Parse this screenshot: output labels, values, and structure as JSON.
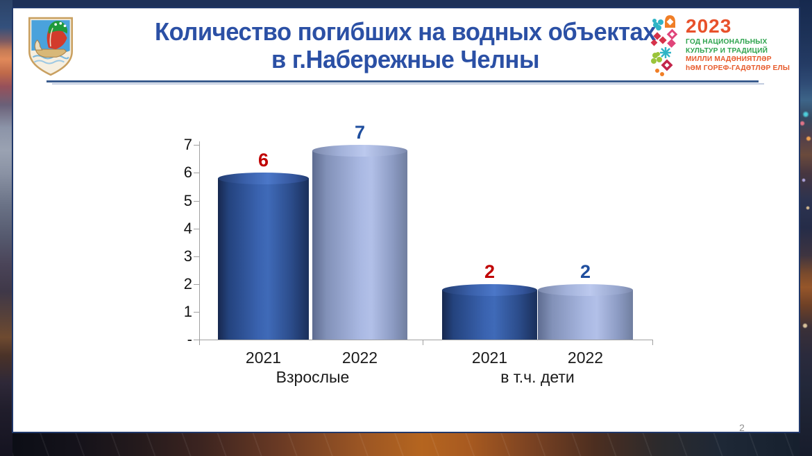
{
  "slide": {
    "title_line1": "Количество погибших на водных объектах",
    "title_line2": "в г.Набережные Челны",
    "title_color": "#2b50a5",
    "page_number": "2"
  },
  "emblem": {
    "name": "герб г.Набережные Челны",
    "colors": {
      "field_blue": "#4aa2dc",
      "sail_red": "#d23b2c",
      "sail_green": "#1f9a3c",
      "boat_gold": "#d8b878"
    }
  },
  "logo2023": {
    "year": "2023",
    "year_color": "#e8512b",
    "lines": [
      {
        "text": "ГОД НАЦИОНАЛЬНЫХ",
        "color": "#2fa44f"
      },
      {
        "text": "КУЛЬТУР И ТРАДИЦИЙ",
        "color": "#2fa44f"
      },
      {
        "text": "МИЛЛИ МАДӘНИЯТЛӘР",
        "color": "#e75a2b"
      },
      {
        "text": "һӘМ ГОРЕФ-ГАДӘТЛӘР ЕЛЫ",
        "color": "#e75a2b"
      }
    ]
  },
  "chart_data": {
    "type": "bar",
    "style": "3d-cylinder",
    "title": "",
    "xlabel": "",
    "ylabel": "",
    "ylim": [
      0,
      7
    ],
    "grid": false,
    "legend": "none",
    "yticks": [
      {
        "label": "7",
        "value": 7
      },
      {
        "label": "6",
        "value": 6
      },
      {
        "label": "5",
        "value": 5
      },
      {
        "label": "4",
        "value": 4
      },
      {
        "label": "3",
        "value": 3
      },
      {
        "label": "2",
        "value": 2
      },
      {
        "label": "1",
        "value": 1
      },
      {
        "label": "-",
        "value": 0
      }
    ],
    "series": [
      {
        "name": "2021",
        "value_label_color": "#c00000"
      },
      {
        "name": "2022",
        "value_label_color": "#1f4e9e"
      }
    ],
    "groups": [
      {
        "label": "Взрослые",
        "bars": [
          {
            "category": "2021",
            "value": 6,
            "series": 0
          },
          {
            "category": "2022",
            "value": 7,
            "series": 1
          }
        ]
      },
      {
        "label": "в т.ч. дети",
        "bars": [
          {
            "category": "2021",
            "value": 2,
            "series": 0
          },
          {
            "category": "2022",
            "value": 2,
            "series": 1
          }
        ]
      }
    ]
  }
}
